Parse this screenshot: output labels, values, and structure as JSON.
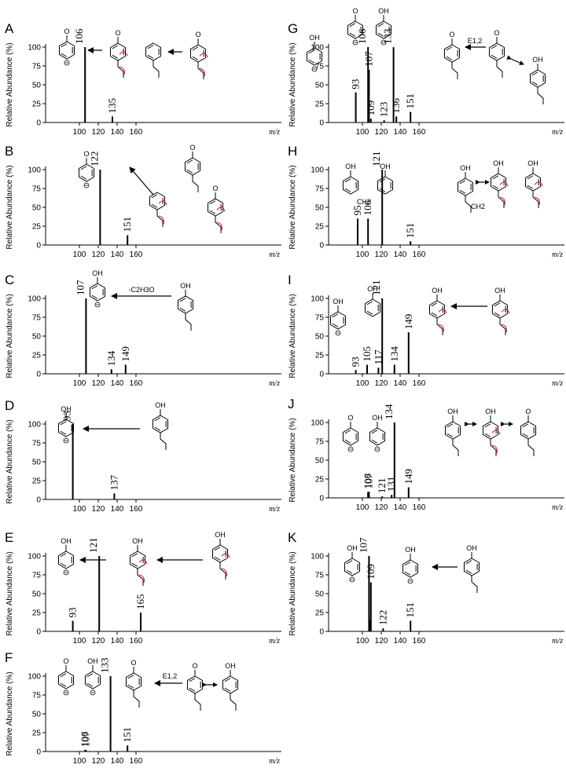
{
  "ylabel": "Relative Abundance (%)",
  "xlabel": "m/z",
  "chart_data": [
    {
      "panel": "A",
      "type": "bar",
      "x": [
        106,
        135
      ],
      "y": [
        100,
        8
      ],
      "peak_labels": [
        "106",
        "135"
      ],
      "xlim": [
        90,
        176
      ],
      "ylim": [
        0,
        100
      ],
      "xticks": [
        100,
        120,
        140,
        160
      ],
      "yticks": [
        0,
        25,
        50,
        75,
        100
      ],
      "annotations": []
    },
    {
      "panel": "B",
      "type": "bar",
      "x": [
        122,
        151
      ],
      "y": [
        100,
        13
      ],
      "peak_labels": [
        "122",
        "151"
      ],
      "xlim": [
        90,
        176
      ],
      "ylim": [
        0,
        100
      ],
      "xticks": [
        100,
        120,
        140,
        160
      ],
      "yticks": [
        0,
        25,
        50,
        75,
        100
      ],
      "annotations": []
    },
    {
      "panel": "C",
      "type": "bar",
      "x": [
        107,
        134,
        149
      ],
      "y": [
        100,
        6,
        12
      ],
      "peak_labels": [
        "107",
        "134",
        "149"
      ],
      "xlim": [
        90,
        176
      ],
      "ylim": [
        0,
        100
      ],
      "xticks": [
        100,
        120,
        140,
        160
      ],
      "yticks": [
        0,
        25,
        50,
        75,
        100
      ],
      "annotations": [
        "-C2H3O"
      ]
    },
    {
      "panel": "D",
      "type": "bar",
      "x": [
        93,
        137
      ],
      "y": [
        100,
        8
      ],
      "peak_labels": [
        "93",
        "137"
      ],
      "xlim": [
        90,
        176
      ],
      "ylim": [
        0,
        100
      ],
      "xticks": [
        100,
        120,
        140,
        160
      ],
      "yticks": [
        0,
        25,
        50,
        75,
        100
      ],
      "annotations": []
    },
    {
      "panel": "E",
      "type": "bar",
      "x": [
        93,
        121,
        165
      ],
      "y": [
        14,
        100,
        25
      ],
      "peak_labels": [
        "93",
        "121",
        "165"
      ],
      "xlim": [
        90,
        176
      ],
      "ylim": [
        0,
        100
      ],
      "xticks": [
        100,
        120,
        140,
        160
      ],
      "yticks": [
        0,
        25,
        50,
        75,
        100
      ],
      "annotations": []
    },
    {
      "panel": "F",
      "type": "bar",
      "x": [
        106,
        107,
        133,
        151
      ],
      "y": [
        2,
        2,
        100,
        8
      ],
      "peak_labels": [
        "106",
        "107",
        "133",
        "151"
      ],
      "xlim": [
        90,
        176
      ],
      "ylim": [
        0,
        100
      ],
      "xticks": [
        100,
        120,
        140,
        160
      ],
      "yticks": [
        0,
        25,
        50,
        75,
        100
      ],
      "annotations": [
        "E1,2"
      ]
    },
    {
      "panel": "G",
      "type": "bar",
      "x": [
        93,
        106,
        107,
        109,
        123,
        133,
        136,
        151
      ],
      "y": [
        40,
        100,
        70,
        5,
        3,
        100,
        8,
        14
      ],
      "peak_labels": [
        "93",
        "106",
        "107",
        "109",
        "123",
        "133",
        "136",
        "151"
      ],
      "xlim": [
        90,
        176
      ],
      "ylim": [
        0,
        100
      ],
      "xticks": [
        100,
        120,
        140,
        160
      ],
      "yticks": [
        0,
        25,
        50,
        75,
        100
      ],
      "annotations": [
        "E1,2"
      ]
    },
    {
      "panel": "H",
      "type": "bar",
      "x": [
        95,
        106,
        121,
        151
      ],
      "y": [
        35,
        35,
        100,
        5
      ],
      "peak_labels": [
        "95",
        "106",
        "121",
        "151"
      ],
      "xlim": [
        90,
        176
      ],
      "ylim": [
        0,
        100
      ],
      "xticks": [
        100,
        120,
        140,
        160
      ],
      "yticks": [
        0,
        25,
        50,
        75,
        100
      ],
      "annotations": [
        "CH2",
        "CH2"
      ]
    },
    {
      "panel": "I",
      "type": "bar",
      "x": [
        93,
        105,
        117,
        121,
        134,
        149
      ],
      "y": [
        5,
        12,
        8,
        100,
        12,
        55
      ],
      "peak_labels": [
        "93",
        "105",
        "117",
        "121",
        "134",
        "149"
      ],
      "xlim": [
        90,
        176
      ],
      "ylim": [
        0,
        100
      ],
      "xticks": [
        100,
        120,
        140,
        160
      ],
      "yticks": [
        0,
        25,
        50,
        75,
        100
      ],
      "annotations": []
    },
    {
      "panel": "J",
      "type": "bar",
      "x": [
        106,
        107,
        121,
        131,
        134,
        149
      ],
      "y": [
        8,
        8,
        2,
        4,
        100,
        14
      ],
      "peak_labels": [
        "106",
        "107",
        "121",
        "131",
        "134",
        "149"
      ],
      "xlim": [
        90,
        176
      ],
      "ylim": [
        0,
        100
      ],
      "xticks": [
        100,
        120,
        140,
        160
      ],
      "yticks": [
        0,
        25,
        50,
        75,
        100
      ],
      "annotations": []
    },
    {
      "panel": "K",
      "type": "bar",
      "x": [
        107,
        108,
        109,
        122,
        151
      ],
      "y": [
        100,
        15,
        65,
        4,
        14
      ],
      "peak_labels": [
        "107",
        "109",
        "122",
        "151"
      ],
      "xlim": [
        90,
        176
      ],
      "ylim": [
        0,
        100
      ],
      "xticks": [
        100,
        120,
        140,
        160
      ],
      "yticks": [
        0,
        25,
        50,
        75,
        100
      ],
      "annotations": []
    }
  ]
}
